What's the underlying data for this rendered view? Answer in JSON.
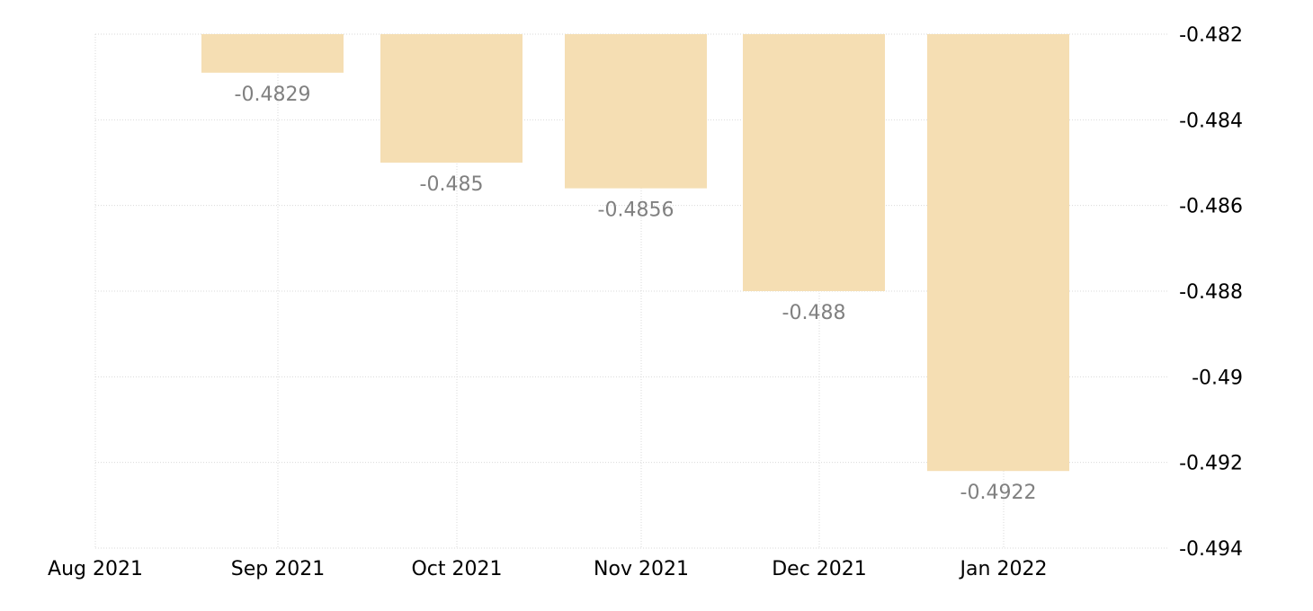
{
  "chart_data": {
    "type": "bar",
    "title": "",
    "xlabel": "",
    "ylabel": "",
    "categories": [
      "Sep 2021",
      "Oct 2021",
      "Nov 2021",
      "Dec 2021",
      "Jan 2022"
    ],
    "values": [
      -0.4829,
      -0.485,
      -0.4856,
      -0.488,
      -0.4922
    ],
    "data_labels": [
      "-0.4829",
      "-0.485",
      "-0.4856",
      "-0.488",
      "-0.4922"
    ],
    "x_tick_labels": [
      "Aug 2021",
      "Sep 2021",
      "Oct 2021",
      "Nov 2021",
      "Dec 2021",
      "Jan 2022"
    ],
    "y_tick_values": [
      -0.482,
      -0.484,
      -0.486,
      -0.488,
      -0.49,
      -0.492,
      -0.494
    ],
    "y_tick_labels": [
      "-0.482",
      "-0.484",
      "-0.486",
      "-0.488",
      "-0.49",
      "-0.492",
      "-0.494"
    ],
    "ylim": [
      -0.494,
      -0.482
    ],
    "y_axis_position": "right",
    "grid": true,
    "legend": "none",
    "bar_color": "#f5deb3",
    "label_color": "#808080"
  }
}
